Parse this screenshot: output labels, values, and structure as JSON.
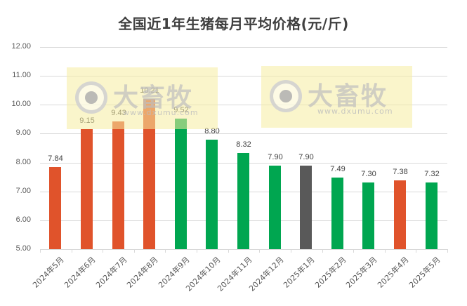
{
  "chart_data": {
    "type": "bar",
    "title": "全国近1年生猪每月平均价格(元/斤)",
    "xlabel": "",
    "ylabel": "",
    "ylim": [
      5.0,
      12.0
    ],
    "yticks": [
      "5.00",
      "6.00",
      "7.00",
      "8.00",
      "9.00",
      "10.00",
      "11.00",
      "12.00"
    ],
    "grid": true,
    "legend": "none",
    "categories": [
      "2024年5月",
      "2024年6月",
      "2024年7月",
      "2024年8月",
      "2024年9月",
      "2024年10月",
      "2024年11月",
      "2024年12月",
      "2025年1月",
      "2025年2月",
      "2025年3月",
      "2025年4月",
      "2025年5月"
    ],
    "values": [
      7.84,
      9.15,
      9.43,
      10.21,
      9.52,
      8.8,
      8.32,
      7.9,
      7.9,
      7.49,
      7.3,
      7.38,
      7.32
    ],
    "value_labels": [
      "7.84",
      "9.15",
      "9.43",
      "10.21",
      "9.52",
      "8.80",
      "8.32",
      "7.90",
      "7.90",
      "7.49",
      "7.30",
      "7.38",
      "7.32"
    ],
    "bar_colors": [
      "#e0532b",
      "#e0532b",
      "#e0532b",
      "#e0532b",
      "#00a650",
      "#00a650",
      "#00a650",
      "#00a650",
      "#595959",
      "#00a650",
      "#00a650",
      "#e0532b",
      "#00a650"
    ],
    "color_meaning": {
      "#e0532b": "up",
      "#00a650": "down",
      "#595959": "flat"
    }
  },
  "watermark": {
    "brand": "大畜牧",
    "url": "www.dxumu.com"
  }
}
